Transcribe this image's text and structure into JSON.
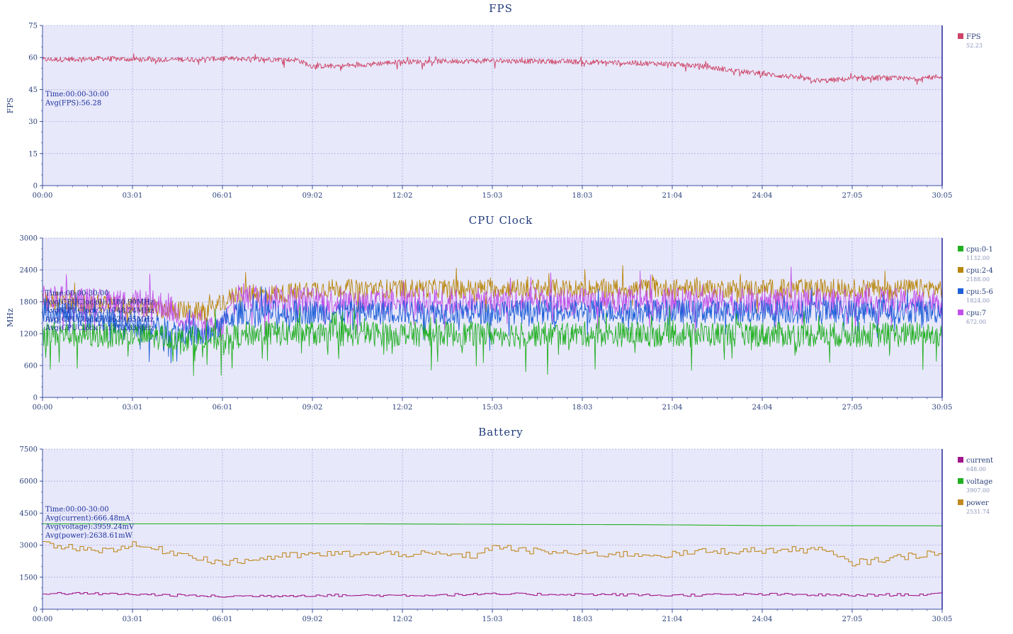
{
  "chart_data": [
    {
      "type": "line",
      "title": "FPS",
      "ylabel": "FPS",
      "ylim": [
        0,
        75
      ],
      "yticks": [
        "0",
        "15",
        "30",
        "45",
        "60",
        "75"
      ],
      "xticks": [
        "00:00",
        "03:01",
        "06:01",
        "09:02",
        "12:02",
        "15:03",
        "18:03",
        "21:04",
        "24:04",
        "27:05",
        "30:05"
      ],
      "grid": true,
      "legend_position": "right",
      "annotations": [
        "Time:00:00-30:00",
        "Avg(FPS):56.28"
      ],
      "series": [
        {
          "name": "FPS",
          "legend_value": "52.23",
          "color": "#cc4466",
          "noise": 1.2,
          "anchors": [
            [
              0,
              59
            ],
            [
              2,
              59.5
            ],
            [
              4,
              59
            ],
            [
              6,
              59.5
            ],
            [
              8.5,
              59
            ],
            [
              9.0,
              56
            ],
            [
              10,
              56
            ],
            [
              11,
              57
            ],
            [
              12,
              58
            ],
            [
              15,
              58.5
            ],
            [
              18,
              58
            ],
            [
              21,
              57
            ],
            [
              22,
              56
            ],
            [
              23,
              54
            ],
            [
              24,
              52.5
            ],
            [
              25,
              51
            ],
            [
              26,
              49
            ],
            [
              27,
              50
            ],
            [
              28,
              50.5
            ],
            [
              29,
              50
            ],
            [
              30,
              51
            ]
          ]
        }
      ]
    },
    {
      "type": "line",
      "title": "CPU Clock",
      "ylabel": "MHz",
      "ylim": [
        0,
        3000
      ],
      "yticks": [
        "0",
        "600",
        "1200",
        "1800",
        "2400",
        "3000"
      ],
      "xticks": [
        "00:00",
        "03:01",
        "06:01",
        "09:02",
        "12:02",
        "15:03",
        "18:03",
        "21:04",
        "24:04",
        "27:05",
        "30:05"
      ],
      "grid": true,
      "legend_position": "right",
      "annotations": [
        "Time:00:00-30:00",
        "Avg(CPUClock0):1180.90MHz",
        "Avg(CPUClock2):1748.24MHz",
        "Avg(CPUClock5):1629.65MHz",
        "Avg(CPUClock7):1773.63MHz"
      ],
      "series": [
        {
          "name": "cpu:2-4",
          "legend_value": "2188.00",
          "color": "#b8860b",
          "noise": 180,
          "anchors": [
            [
              0,
              1850
            ],
            [
              5.5,
              1600
            ],
            [
              6.5,
              1950
            ],
            [
              8,
              1950
            ],
            [
              9,
              2050
            ],
            [
              30,
              2050
            ]
          ]
        },
        {
          "name": "cpu:7",
          "legend_value": "672.00",
          "color": "#c050e8",
          "noise": 260,
          "anchors": [
            [
              0,
              1850
            ],
            [
              4,
              1750
            ],
            [
              5.5,
              1250
            ],
            [
              6,
              1300
            ],
            [
              6.5,
              1900
            ],
            [
              10,
              1800
            ],
            [
              30,
              1800
            ]
          ]
        },
        {
          "name": "cpu:5-6",
          "legend_value": "1824.00",
          "color": "#1f60d8",
          "noise": 230,
          "anchors": [
            [
              0,
              1650
            ],
            [
              5.5,
              1150
            ],
            [
              6.5,
              1600
            ],
            [
              30,
              1620
            ]
          ]
        },
        {
          "name": "cpu:0-1",
          "legend_value": "1132.00",
          "color": "#22b022",
          "noise": 240,
          "anchors": [
            [
              0,
              1200
            ],
            [
              6,
              1100
            ],
            [
              7,
              1200
            ],
            [
              30,
              1180
            ]
          ]
        }
      ]
    },
    {
      "type": "line",
      "title": "Battery",
      "ylabel": "",
      "ylim": [
        0,
        7500
      ],
      "yticks": [
        "0",
        "1500",
        "3000",
        "4500",
        "6000",
        "7500"
      ],
      "xticks": [
        "00:00",
        "03:01",
        "06:01",
        "09:02",
        "12:02",
        "15:03",
        "18:03",
        "21:04",
        "24:04",
        "27:05",
        "30:05"
      ],
      "grid": true,
      "legend_position": "right",
      "annotations": [
        "Time:00:00-30:00",
        "Avg(current):666.48mA",
        "Avg(voltage):3959.24mV",
        "Avg(power):2638.61mW"
      ],
      "series": [
        {
          "name": "current",
          "legend_value": "648.00",
          "color": "#a0168a",
          "noise": 60,
          "step": true,
          "anchors": [
            [
              0,
              750
            ],
            [
              3,
              700
            ],
            [
              6,
              600
            ],
            [
              9,
              650
            ],
            [
              12,
              650
            ],
            [
              15,
              700
            ],
            [
              18,
              700
            ],
            [
              21,
              650
            ],
            [
              24,
              700
            ],
            [
              27,
              650
            ],
            [
              30,
              700
            ]
          ]
        },
        {
          "name": "voltage",
          "legend_value": "3907.00",
          "color": "#22b022",
          "noise": 0,
          "step": true,
          "anchors": [
            [
              0,
              4000
            ],
            [
              10,
              4000
            ],
            [
              12.5,
              3990
            ],
            [
              17,
              3970
            ],
            [
              20,
              3960
            ],
            [
              24,
              3920
            ],
            [
              30,
              3907
            ]
          ]
        },
        {
          "name": "power",
          "legend_value": "2531.74",
          "color": "#c08a20",
          "noise": 160,
          "step": true,
          "anchors": [
            [
              0,
              3050
            ],
            [
              2,
              2750
            ],
            [
              3,
              3000
            ],
            [
              5,
              2500
            ],
            [
              6,
              2150
            ],
            [
              8,
              2500
            ],
            [
              10,
              2600
            ],
            [
              12,
              2600
            ],
            [
              14.6,
              2500
            ],
            [
              15,
              3000
            ],
            [
              16,
              2750
            ],
            [
              18,
              2600
            ],
            [
              21,
              2550
            ],
            [
              22,
              2700
            ],
            [
              24,
              2750
            ],
            [
              26,
              2800
            ],
            [
              27,
              2150
            ],
            [
              29,
              2500
            ],
            [
              30,
              2700
            ]
          ]
        }
      ]
    }
  ]
}
